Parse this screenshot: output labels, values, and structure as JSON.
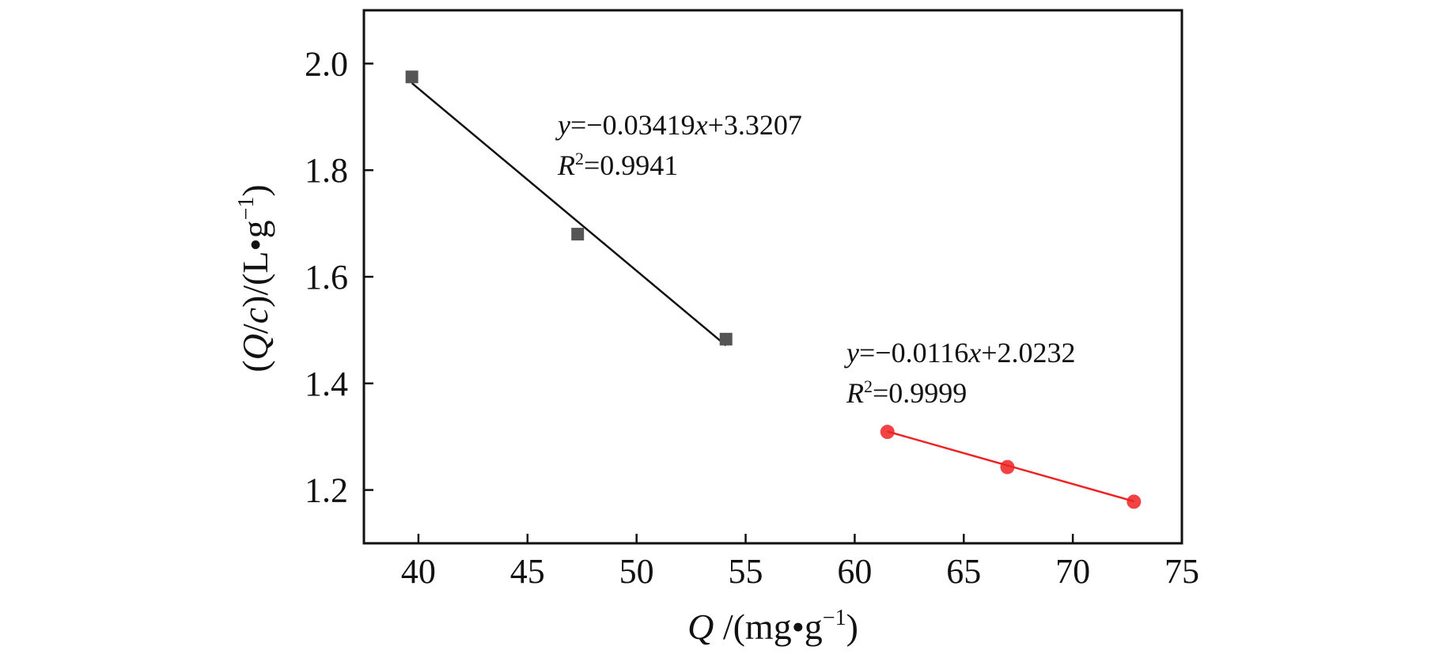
{
  "chart_data": {
    "type": "scatter",
    "xlabel": "Q /(mg•g⁻¹)",
    "ylabel": "(Q/c)/(L•g⁻¹)",
    "xlabel_parts": {
      "var": "Q",
      "unit": " /(mg•g",
      "exp": "−1",
      "close": ")"
    },
    "ylabel_parts": {
      "open": "(",
      "var1": "Q",
      "slash": "/",
      "var2": "c",
      "unit": ")/(L•g",
      "exp": "−1",
      "close": ")"
    },
    "xlim": [
      37.5,
      75
    ],
    "ylim": [
      1.1,
      2.1
    ],
    "x_ticks": [
      40,
      45,
      50,
      55,
      60,
      65,
      70,
      75
    ],
    "y_ticks": [
      1.2,
      1.4,
      1.6,
      1.8,
      2.0
    ],
    "x_tick_labels": [
      "40",
      "45",
      "50",
      "55",
      "60",
      "65",
      "70",
      "75"
    ],
    "y_tick_labels": [
      "1.2",
      "1.4",
      "1.6",
      "1.8",
      "2.0"
    ],
    "grid": false,
    "series": [
      {
        "marker": "square",
        "color": "#555555",
        "line_color": "#111111",
        "x": [
          39.7,
          47.3,
          54.1
        ],
        "y": [
          1.975,
          1.68,
          1.483
        ],
        "fit": {
          "slope": -0.03419,
          "intercept": 3.3207,
          "x_range": [
            39.7,
            54.1
          ]
        },
        "equation": {
          "lhs": "y",
          "mid": "=−0.03419",
          "var": "x",
          "rhs": "+3.3207"
        },
        "r2": {
          "sym": "R",
          "sup": "2",
          "value": "=0.9941"
        }
      },
      {
        "marker": "circle",
        "color": "#ee2222",
        "line_color": "#ee2222",
        "x": [
          61.5,
          67.0,
          72.8
        ],
        "y": [
          1.309,
          1.243,
          1.178
        ],
        "fit": {
          "slope": -0.0116,
          "intercept": 2.0232,
          "x_range": [
            61.5,
            72.8
          ]
        },
        "equation": {
          "lhs": "y",
          "mid": "=−0.0116",
          "var": "x",
          "rhs": "+2.0232"
        },
        "r2": {
          "sym": "R",
          "sup": "2",
          "value": "=0.9999"
        }
      }
    ]
  }
}
